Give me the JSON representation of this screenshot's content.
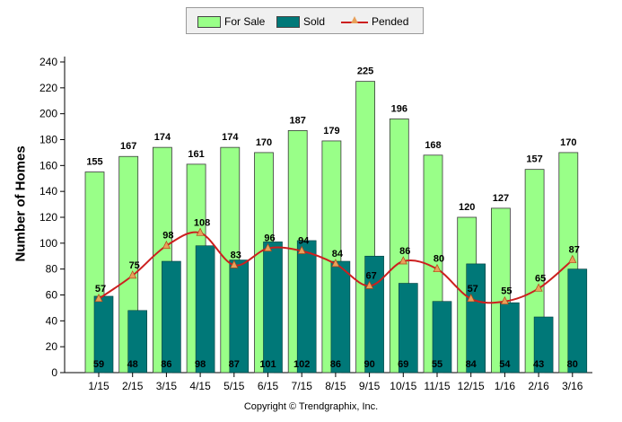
{
  "legend": {
    "for_sale_label": "For Sale",
    "sold_label": "Sold",
    "pended_label": "Pended"
  },
  "copyright": "Copyright © Trendgraphix, Inc.",
  "colors": {
    "for_sale": "#99ff88",
    "sold": "#007878",
    "pended_line": "#cc1f1f",
    "pended_marker": "#e8a05a"
  },
  "chart_data": {
    "type": "bar",
    "title": "",
    "xlabel": "",
    "ylabel": "Number of Homes",
    "ylim": [
      0,
      240
    ],
    "ytick_step": 20,
    "grid": false,
    "legend_position": "top-center",
    "categories": [
      "1/15",
      "2/15",
      "3/15",
      "4/15",
      "5/15",
      "6/15",
      "7/15",
      "8/15",
      "9/15",
      "10/15",
      "11/15",
      "12/15",
      "1/16",
      "2/16",
      "3/16"
    ],
    "series": [
      {
        "name": "For Sale",
        "kind": "bar",
        "values": [
          155,
          167,
          174,
          161,
          174,
          170,
          187,
          179,
          225,
          196,
          168,
          120,
          127,
          157,
          170
        ]
      },
      {
        "name": "Sold",
        "kind": "bar",
        "values": [
          59,
          48,
          86,
          98,
          87,
          101,
          102,
          86,
          90,
          69,
          55,
          84,
          54,
          43,
          80
        ]
      },
      {
        "name": "Pended",
        "kind": "line",
        "values": [
          57,
          75,
          98,
          108,
          83,
          96,
          94,
          84,
          67,
          86,
          80,
          57,
          55,
          65,
          87
        ]
      }
    ]
  }
}
